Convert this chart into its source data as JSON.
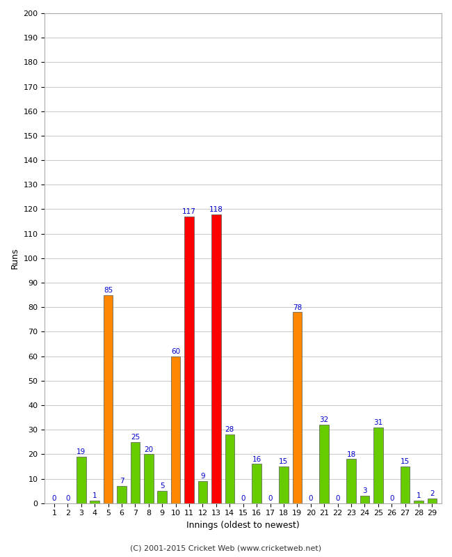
{
  "innings": [
    1,
    2,
    3,
    4,
    5,
    6,
    7,
    8,
    9,
    10,
    11,
    12,
    13,
    14,
    15,
    16,
    17,
    18,
    19,
    20,
    21,
    22,
    23,
    24,
    25,
    26,
    27,
    28,
    29
  ],
  "values": [
    0,
    0,
    19,
    1,
    85,
    7,
    25,
    20,
    5,
    60,
    117,
    9,
    118,
    28,
    0,
    16,
    0,
    15,
    78,
    0,
    32,
    0,
    18,
    3,
    31,
    0,
    15,
    1,
    2
  ],
  "colors": [
    "#66cc00",
    "#66cc00",
    "#66cc00",
    "#66cc00",
    "#ff8800",
    "#66cc00",
    "#66cc00",
    "#66cc00",
    "#66cc00",
    "#ff8800",
    "#ff0000",
    "#66cc00",
    "#ff0000",
    "#66cc00",
    "#66cc00",
    "#66cc00",
    "#66cc00",
    "#66cc00",
    "#ff8800",
    "#66cc00",
    "#66cc00",
    "#66cc00",
    "#66cc00",
    "#66cc00",
    "#66cc00",
    "#66cc00",
    "#66cc00",
    "#66cc00",
    "#66cc00"
  ],
  "xlabel": "Innings (oldest to newest)",
  "ylabel": "Runs",
  "ylim": [
    0,
    200
  ],
  "yticks": [
    0,
    10,
    20,
    30,
    40,
    50,
    60,
    70,
    80,
    90,
    100,
    110,
    120,
    130,
    140,
    150,
    160,
    170,
    180,
    190,
    200
  ],
  "footer": "(C) 2001-2015 Cricket Web (www.cricketweb.net)",
  "background_color": "#ffffff",
  "grid_color": "#cccccc",
  "label_color": "#0000cc",
  "bar_edge_color": "#555555"
}
